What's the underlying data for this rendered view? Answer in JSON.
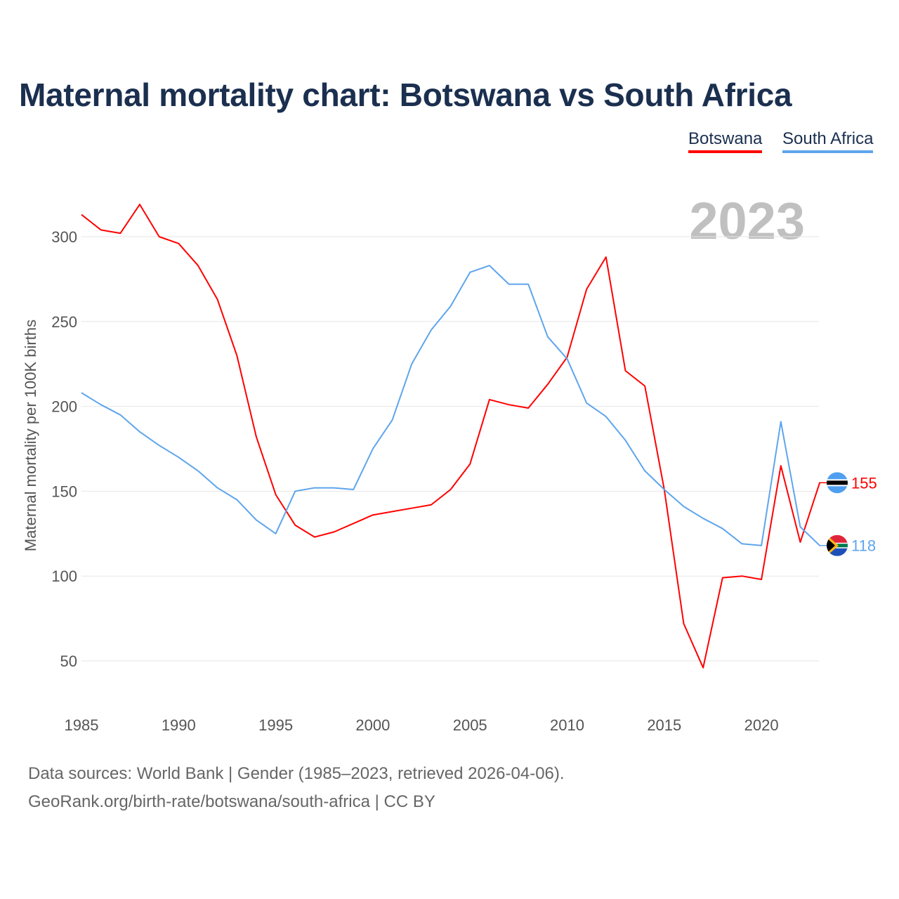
{
  "title": "Maternal mortality chart: Botswana vs South Africa",
  "year_label": "2023",
  "legend": [
    {
      "name": "Botswana",
      "color": "#ff0000"
    },
    {
      "name": "South Africa",
      "color": "#5ea5ec"
    }
  ],
  "footer": {
    "source": "Data sources: World Bank | Gender (1985–2023, retrieved 2026-04-06).",
    "url": "GeoRank.org/birth-rate/botswana/south-africa | CC BY"
  },
  "chart_data": {
    "type": "line",
    "title": "Maternal mortality chart: Botswana vs South Africa",
    "xlabel": "",
    "ylabel": "Maternal mortality per 100K births",
    "xlim": [
      1985,
      2023
    ],
    "ylim": [
      50,
      300
    ],
    "x_ticks": [
      1985,
      1990,
      1995,
      2000,
      2005,
      2010,
      2015,
      2020
    ],
    "y_ticks": [
      50,
      100,
      150,
      200,
      250,
      300
    ],
    "grid": true,
    "legend_position": "top-right",
    "x": [
      1985,
      1986,
      1987,
      1988,
      1989,
      1990,
      1991,
      1992,
      1993,
      1994,
      1995,
      1996,
      1997,
      1998,
      1999,
      2000,
      2001,
      2002,
      2003,
      2004,
      2005,
      2006,
      2007,
      2008,
      2009,
      2010,
      2011,
      2012,
      2013,
      2014,
      2015,
      2016,
      2017,
      2018,
      2019,
      2020,
      2021,
      2022,
      2023
    ],
    "series": [
      {
        "name": "Botswana",
        "color": "#ff0000",
        "end_label": "155",
        "values": [
          313,
          304,
          302,
          319,
          300,
          296,
          283,
          263,
          230,
          182,
          148,
          130,
          123,
          126,
          131,
          136,
          138,
          140,
          142,
          151,
          166,
          204,
          201,
          199,
          213,
          229,
          269,
          288,
          221,
          212,
          151,
          72,
          46,
          99,
          100,
          98,
          165,
          120,
          155
        ]
      },
      {
        "name": "South Africa",
        "color": "#5ea5ec",
        "end_label": "118",
        "values": [
          208,
          201,
          195,
          185,
          177,
          170,
          162,
          152,
          145,
          133,
          125,
          150,
          152,
          152,
          151,
          175,
          192,
          225,
          245,
          259,
          279,
          283,
          272,
          272,
          241,
          228,
          202,
          194,
          180,
          162,
          151,
          141,
          134,
          128,
          119,
          118,
          191,
          129,
          118
        ]
      }
    ]
  }
}
